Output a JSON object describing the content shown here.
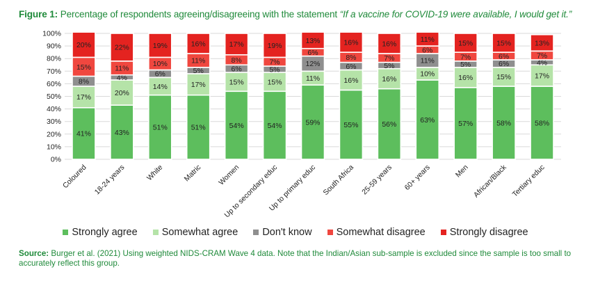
{
  "title": {
    "figure_label": "Figure 1:",
    "text": "Percentage of respondents agreeing/disagreeing with the statement",
    "quote": "“If a vaccine for COVID-19 were available, I would get it.”"
  },
  "source": {
    "label": "Source:",
    "text": "Burger et al. (2021) Using weighted NIDS-CRAM Wave 4 data. Note that the Indian/Asian sub-sample is excluded since the sample is too small to accurately reflect this group."
  },
  "colors": {
    "strongly_agree": "#5dbe5d",
    "somewhat_agree": "#b5e3a8",
    "dont_know": "#8f8f8f",
    "somewhat_disagree": "#f0473f",
    "strongly_disagree": "#e42320",
    "title_green": "#1f8a3a"
  },
  "chart_data": {
    "type": "bar",
    "stacked": true,
    "grid": true,
    "legend_position": "bottom",
    "ylim": [
      0,
      100
    ],
    "yticks": [
      "0%",
      "10%",
      "20%",
      "30%",
      "40%",
      "50%",
      "60%",
      "70%",
      "80%",
      "90%",
      "100%"
    ],
    "categories": [
      "Coloured",
      "18-24 years",
      "White",
      "Matric",
      "Women",
      "Up to secondary educ",
      "Up to primary educ",
      "South Africa",
      "25-59 years",
      "60+ years",
      "Men",
      "African/Black",
      "Tertiary educ"
    ],
    "series": [
      {
        "name": "Strongly agree",
        "color_key": "strongly_agree",
        "values": [
          41,
          43,
          51,
          51,
          54,
          54,
          59,
          55,
          56,
          63,
          57,
          58,
          58
        ]
      },
      {
        "name": "Somewhat agree",
        "color_key": "somewhat_agree",
        "values": [
          17,
          20,
          14,
          17,
          15,
          15,
          11,
          16,
          16,
          10,
          16,
          15,
          17
        ]
      },
      {
        "name": "Don't know",
        "color_key": "dont_know",
        "values": [
          8,
          4,
          6,
          5,
          6,
          5,
          12,
          6,
          5,
          11,
          5,
          6,
          4
        ]
      },
      {
        "name": "Somewhat disagree",
        "color_key": "somewhat_disagree",
        "values": [
          15,
          11,
          10,
          11,
          8,
          7,
          6,
          8,
          7,
          6,
          7,
          6,
          7
        ]
      },
      {
        "name": "Strongly disagree",
        "color_key": "strongly_disagree",
        "values": [
          20,
          22,
          19,
          16,
          17,
          19,
          13,
          16,
          16,
          11,
          15,
          15,
          13
        ]
      }
    ]
  }
}
